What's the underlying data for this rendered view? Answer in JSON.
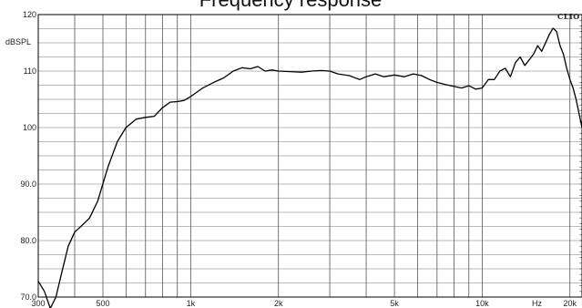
{
  "chart_data": {
    "type": "line",
    "title": "Frequency response",
    "ylabel": "dBSPL",
    "xlabel": "Hz",
    "brand": "CLIO",
    "x_scale": "log",
    "xlim": [
      300,
      22000
    ],
    "ylim": [
      70,
      120
    ],
    "grid": true,
    "y_ticks": [
      {
        "value": 70,
        "label": "70.0"
      },
      {
        "value": 80,
        "label": "80.0"
      },
      {
        "value": 90,
        "label": "90.0"
      },
      {
        "value": 100,
        "label": "100"
      },
      {
        "value": 110,
        "label": "110"
      },
      {
        "value": 120,
        "label": "120"
      }
    ],
    "x_ticks": [
      {
        "value": 300,
        "label": "300"
      },
      {
        "value": 500,
        "label": "500"
      },
      {
        "value": 1000,
        "label": "1k"
      },
      {
        "value": 2000,
        "label": "2k"
      },
      {
        "value": 5000,
        "label": "5k"
      },
      {
        "value": 10000,
        "label": "10k"
      },
      {
        "value": 20000,
        "label": "20k"
      }
    ],
    "series": [
      {
        "color": "#000000",
        "x": [
          300,
          315,
          330,
          345,
          360,
          380,
          400,
          420,
          450,
          480,
          520,
          560,
          600,
          650,
          700,
          750,
          800,
          850,
          900,
          950,
          1000,
          1100,
          1200,
          1300,
          1400,
          1500,
          1600,
          1700,
          1800,
          1900,
          2000,
          2200,
          2400,
          2600,
          2800,
          3000,
          3200,
          3500,
          3800,
          4000,
          4300,
          4600,
          5000,
          5400,
          5800,
          6200,
          6600,
          7000,
          7500,
          8000,
          8500,
          9000,
          9500,
          10000,
          10500,
          11000,
          11500,
          12000,
          12500,
          13000,
          13500,
          14000,
          14500,
          15000,
          15500,
          16000,
          16500,
          17000,
          17500,
          18000,
          18500,
          19000,
          19500,
          20000,
          20500,
          21000,
          22000
        ],
        "y": [
          72.8,
          71.0,
          68.0,
          70.0,
          74.0,
          79.0,
          81.5,
          82.5,
          84.0,
          87.0,
          93.0,
          97.5,
          100.0,
          101.5,
          101.8,
          102.0,
          103.5,
          104.5,
          104.6,
          104.8,
          105.5,
          107.0,
          108.0,
          108.8,
          110.0,
          110.6,
          110.4,
          110.8,
          110.0,
          110.2,
          110.0,
          109.9,
          109.8,
          110.0,
          110.1,
          110.0,
          109.5,
          109.2,
          108.5,
          109.0,
          109.5,
          109.0,
          109.3,
          109.0,
          109.5,
          109.2,
          108.5,
          108.0,
          107.6,
          107.3,
          107.0,
          107.4,
          106.8,
          107.0,
          108.5,
          108.5,
          110.0,
          110.5,
          109.0,
          111.5,
          112.5,
          111.0,
          112.0,
          113.0,
          114.5,
          113.5,
          115.0,
          116.5,
          117.6,
          117.0,
          114.5,
          113.0,
          110.5,
          108.5,
          107.0,
          105.0,
          100.0
        ]
      }
    ]
  }
}
